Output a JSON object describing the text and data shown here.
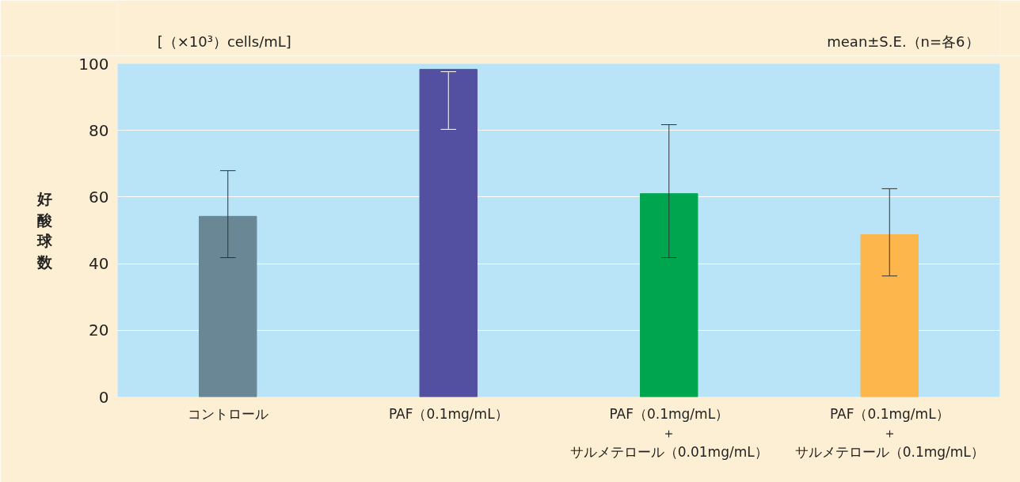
{
  "chart_data": {
    "type": "bar",
    "ylabel": "好酸球数",
    "categories": [
      "コントロール",
      "PAF（0.1mg/mL）",
      "PAF（0.1mg/mL）＋サルメテロール（0.01mg/mL）",
      "PAF（0.1mg/mL）＋サルメテロール（0.1mg/mL）"
    ],
    "values": [
      54.2,
      98.3,
      61.0,
      48.7
    ],
    "colors": [
      "#6a8795",
      "#5350a2",
      "#00a64f",
      "#fdb64b"
    ],
    "errors": [
      [
        41.8,
        67.9
      ],
      [
        80.3,
        97.6
      ],
      [
        41.8,
        81.7
      ],
      [
        36.3,
        62.5
      ]
    ],
    "ylim": [
      0,
      100
    ],
    "yticks": [
      0,
      20,
      40,
      60,
      80,
      100
    ],
    "grid": "y",
    "annotations": [
      "[（×10³）cells/mL]",
      "mean±S.E.（n=各6）"
    ]
  }
}
